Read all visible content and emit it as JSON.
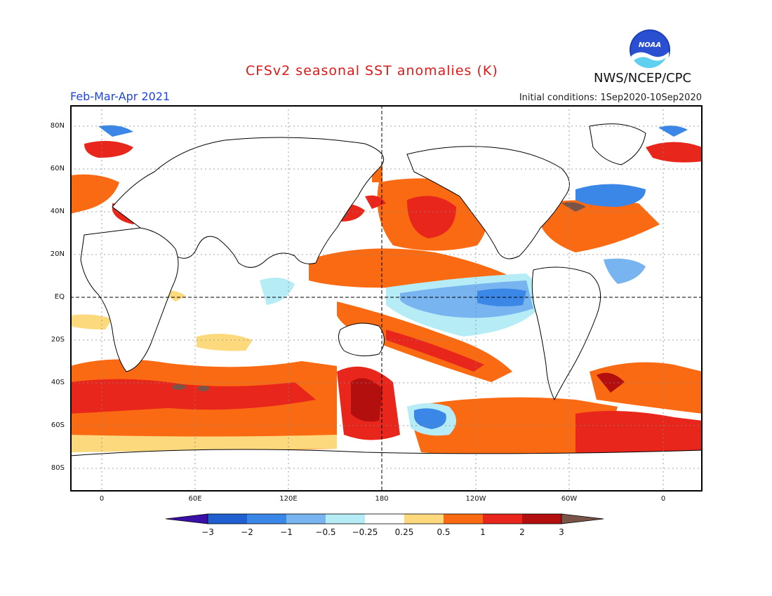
{
  "header": {
    "title": "CFSv2 seasonal SST anomalies (K)",
    "period": "Feb-Mar-Apr 2021",
    "initial_conditions": "Initial conditions: 1Sep2020-10Sep2020",
    "agency": "NWS/NCEP/CPC",
    "logo_text": "NOAA"
  },
  "map": {
    "latitude_labels": [
      "80N",
      "60N",
      "40N",
      "20N",
      "EQ",
      "20S",
      "40S",
      "60S",
      "80S"
    ],
    "longitude_labels": [
      "0",
      "60E",
      "120E",
      "180",
      "120W",
      "60W",
      "0"
    ],
    "reference_lines": [
      "equator",
      "dateline"
    ]
  },
  "colorbar": {
    "labels": [
      "-3",
      "-2",
      "-1",
      "-0.5",
      "-0.25",
      "0.25",
      "0.5",
      "1",
      "2",
      "3"
    ],
    "colors": [
      "#3a10a8",
      "#1f5fd0",
      "#3a87e8",
      "#78b4f0",
      "#b6ecf6",
      "#ffffff",
      "#fcd97c",
      "#fa6a12",
      "#e8261b",
      "#b30f0f",
      "#7a5547"
    ]
  },
  "colors": {
    "title": "#dd1a1a",
    "period": "#1f44e0"
  }
}
